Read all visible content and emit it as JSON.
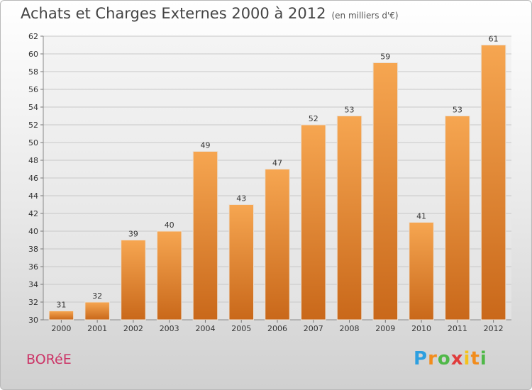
{
  "header": {
    "title": "Achats et Charges Externes 2000 à 2012",
    "unit_note": "(en milliers d'€)"
  },
  "footer": {
    "commune": "BORéE",
    "logo_letters": [
      "P",
      "r",
      "o",
      "x",
      "i",
      "t",
      "i"
    ]
  },
  "colors": {
    "bar_top": "#f6a651",
    "bar_bottom": "#c9681a",
    "commune_text": "#cc3366"
  },
  "chart_data": {
    "type": "bar",
    "title": "Achats et Charges Externes 2000 à 2012",
    "subtitle": "(en milliers d'€)",
    "xlabel": "",
    "ylabel": "",
    "categories": [
      "2000",
      "2001",
      "2002",
      "2003",
      "2004",
      "2005",
      "2006",
      "2007",
      "2008",
      "2009",
      "2010",
      "2011",
      "2012"
    ],
    "values": [
      31,
      32,
      39,
      40,
      49,
      43,
      47,
      52,
      53,
      59,
      41,
      53,
      61
    ],
    "ylim": [
      30,
      62
    ],
    "yticks": [
      30,
      32,
      34,
      36,
      38,
      40,
      42,
      44,
      46,
      48,
      50,
      52,
      54,
      56,
      58,
      60,
      62
    ],
    "grid": true,
    "data_labels": true
  }
}
